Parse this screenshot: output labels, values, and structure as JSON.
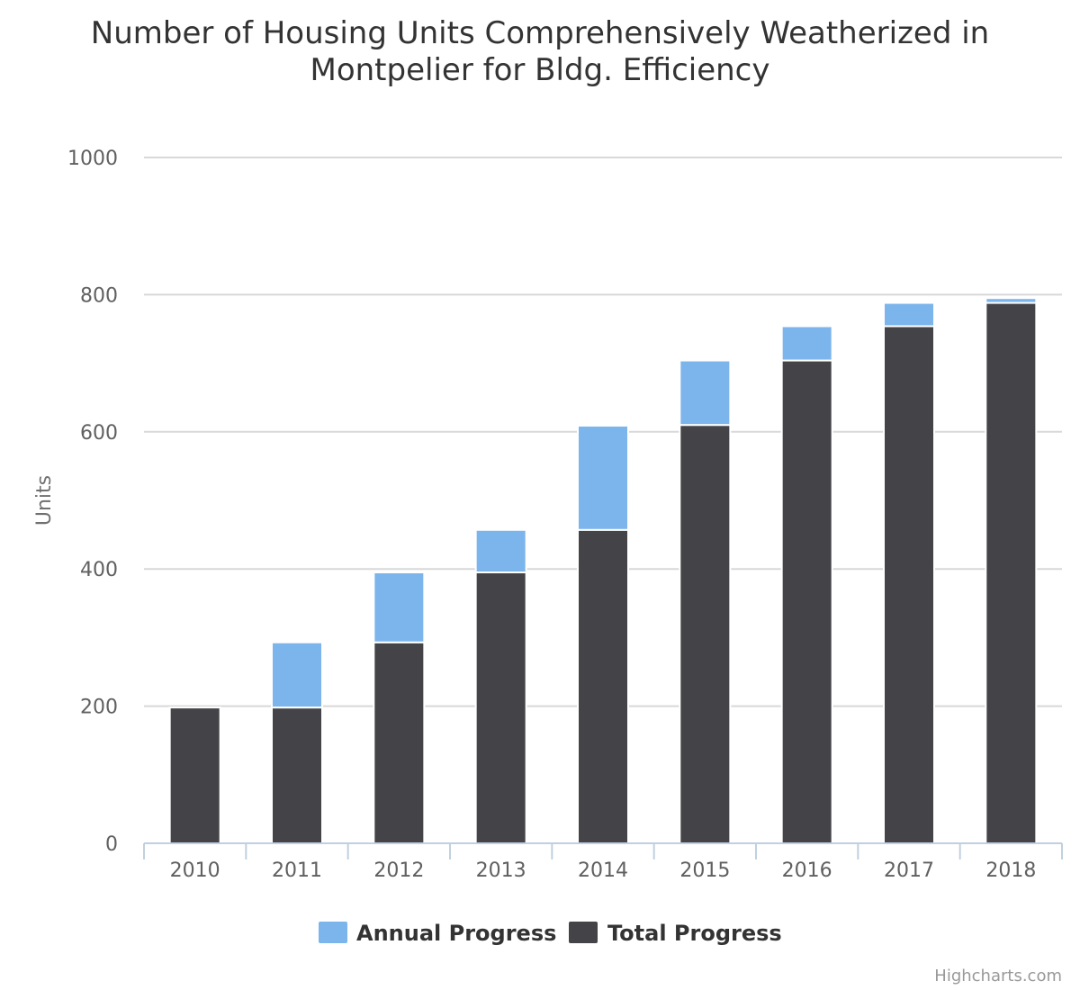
{
  "chart_data": {
    "type": "bar",
    "stacked": true,
    "title": "Number of Housing Units Comprehensively Weatherized in Montpelier for Bldg. Efficiency",
    "title_lines": [
      "Number of Housing Units Comprehensively Weatherized in",
      "Montpelier for Bldg. Efficiency"
    ],
    "xlabel": "",
    "ylabel": "Units",
    "ylim": [
      0,
      1000
    ],
    "yticks": [
      0,
      200,
      400,
      600,
      800,
      1000
    ],
    "grid": true,
    "legend_position": "bottom-center",
    "categories": [
      "2010",
      "2011",
      "2012",
      "2013",
      "2014",
      "2015",
      "2016",
      "2017",
      "2018"
    ],
    "series": [
      {
        "name": "Annual Progress",
        "color": "#7cb5ec",
        "values": [
          0,
          95,
          102,
          62,
          152,
          94,
          50,
          34,
          7
        ]
      },
      {
        "name": "Total Progress",
        "color": "#434348",
        "values": [
          198,
          198,
          293,
          395,
          457,
          610,
          704,
          754,
          788
        ]
      }
    ],
    "credits": "Highcharts.com"
  }
}
